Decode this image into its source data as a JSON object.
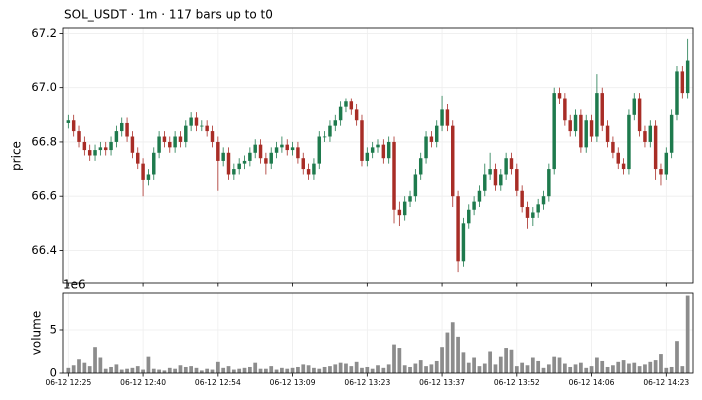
{
  "chart_data": [
    {
      "type": "candlestick",
      "title": "SOL_USDT  ·  1m  ·  117 bars up to t0",
      "ylabel": "price",
      "up_color": "#1e7a4d",
      "down_color": "#a82d26",
      "grid": true,
      "xlim": [
        -1,
        117
      ],
      "ylim": [
        66.28,
        67.22
      ],
      "yticks": [
        66.4,
        66.6,
        66.8,
        {
          "value": 67,
          "label": "67.0"
        },
        67.2
      ],
      "open": [
        66.87,
        66.88,
        66.84,
        66.8,
        66.77,
        66.75,
        66.77,
        66.78,
        66.77,
        66.8,
        66.84,
        66.87,
        66.82,
        66.76,
        66.72,
        66.66,
        66.68,
        66.76,
        66.82,
        66.8,
        66.78,
        66.82,
        66.8,
        66.86,
        66.89,
        66.86,
        66.86,
        66.84,
        66.8,
        66.73,
        66.76,
        66.68,
        66.7,
        66.72,
        66.73,
        66.76,
        66.79,
        66.74,
        66.72,
        66.76,
        66.78,
        66.79,
        66.77,
        66.78,
        66.74,
        66.7,
        66.68,
        66.72,
        66.82,
        66.82,
        66.86,
        66.88,
        66.93,
        66.95,
        66.92,
        66.88,
        66.73,
        66.76,
        66.78,
        66.79,
        66.74,
        66.8,
        66.55,
        66.53,
        66.58,
        66.6,
        66.68,
        66.74,
        66.82,
        66.8,
        66.86,
        66.92,
        66.86,
        66.6,
        66.36,
        66.5,
        66.55,
        66.58,
        66.62,
        66.68,
        66.7,
        66.64,
        66.68,
        66.74,
        66.7,
        66.62,
        66.56,
        66.52,
        66.54,
        66.57,
        66.6,
        66.7,
        66.98,
        66.96,
        66.88,
        66.84,
        66.9,
        66.78,
        66.88,
        66.82,
        66.98,
        66.86,
        66.8,
        66.76,
        66.72,
        66.7,
        66.9,
        66.96,
        66.84,
        66.8,
        66.86,
        66.7,
        66.68,
        66.76,
        66.9,
        67.06,
        66.98
      ],
      "high": [
        66.9,
        66.9,
        66.86,
        66.82,
        66.79,
        66.79,
        66.8,
        66.8,
        66.82,
        66.86,
        66.89,
        66.89,
        66.84,
        66.78,
        66.74,
        66.7,
        66.78,
        66.84,
        66.84,
        66.82,
        66.84,
        66.84,
        66.88,
        66.91,
        66.91,
        66.88,
        66.88,
        66.86,
        66.82,
        66.78,
        66.78,
        66.72,
        66.74,
        66.75,
        66.78,
        66.81,
        66.81,
        66.76,
        66.78,
        66.8,
        66.82,
        66.81,
        66.8,
        66.8,
        66.76,
        66.72,
        66.74,
        66.84,
        66.84,
        66.88,
        66.9,
        66.95,
        66.96,
        66.96,
        66.94,
        66.9,
        66.78,
        66.8,
        66.81,
        66.81,
        66.82,
        66.82,
        66.58,
        66.6,
        66.62,
        66.7,
        66.76,
        66.84,
        66.84,
        66.88,
        66.97,
        66.94,
        66.88,
        66.62,
        66.52,
        66.57,
        66.6,
        66.64,
        66.72,
        66.76,
        66.72,
        66.7,
        66.76,
        66.76,
        66.72,
        66.64,
        66.58,
        66.56,
        66.59,
        66.62,
        66.72,
        67.0,
        67.0,
        66.98,
        66.9,
        66.92,
        66.92,
        66.9,
        66.9,
        67.05,
        67.0,
        66.88,
        66.82,
        66.78,
        66.74,
        66.92,
        66.98,
        66.98,
        66.86,
        66.88,
        66.88,
        66.72,
        66.78,
        66.92,
        67.08,
        67.08,
        67.18
      ],
      "low": [
        66.85,
        66.82,
        66.78,
        66.75,
        66.73,
        66.73,
        66.75,
        66.75,
        66.75,
        66.78,
        66.82,
        66.8,
        66.74,
        66.7,
        66.6,
        66.64,
        66.66,
        66.74,
        66.78,
        66.76,
        66.76,
        66.78,
        66.78,
        66.84,
        66.84,
        66.84,
        66.82,
        66.78,
        66.62,
        66.71,
        66.66,
        66.66,
        66.68,
        66.7,
        66.71,
        66.74,
        66.72,
        66.68,
        66.7,
        66.74,
        66.76,
        66.75,
        66.75,
        66.72,
        66.68,
        66.66,
        66.66,
        66.7,
        66.8,
        66.8,
        66.84,
        66.86,
        66.91,
        66.9,
        66.86,
        66.71,
        66.71,
        66.74,
        66.76,
        66.72,
        66.72,
        66.5,
        66.49,
        66.51,
        66.56,
        66.58,
        66.66,
        66.72,
        66.78,
        66.78,
        66.84,
        66.84,
        66.56,
        66.32,
        66.34,
        66.48,
        66.53,
        66.56,
        66.6,
        66.66,
        66.62,
        66.62,
        66.66,
        66.68,
        66.6,
        66.54,
        66.48,
        66.49,
        66.52,
        66.55,
        66.58,
        66.68,
        66.94,
        66.86,
        66.82,
        66.82,
        66.76,
        66.76,
        66.8,
        66.8,
        66.84,
        66.78,
        66.74,
        66.7,
        66.68,
        66.68,
        66.88,
        66.82,
        66.78,
        66.78,
        66.66,
        66.64,
        66.66,
        66.74,
        66.88,
        66.96,
        66.96
      ],
      "close": [
        66.88,
        66.84,
        66.8,
        66.77,
        66.75,
        66.77,
        66.78,
        66.77,
        66.8,
        66.84,
        66.87,
        66.82,
        66.76,
        66.72,
        66.66,
        66.68,
        66.76,
        66.82,
        66.8,
        66.78,
        66.82,
        66.8,
        66.86,
        66.89,
        66.86,
        66.86,
        66.84,
        66.8,
        66.73,
        66.76,
        66.68,
        66.7,
        66.72,
        66.73,
        66.76,
        66.79,
        66.74,
        66.72,
        66.76,
        66.78,
        66.79,
        66.77,
        66.78,
        66.74,
        66.7,
        66.68,
        66.72,
        66.82,
        66.82,
        66.86,
        66.88,
        66.93,
        66.95,
        66.92,
        66.88,
        66.73,
        66.76,
        66.78,
        66.79,
        66.74,
        66.8,
        66.55,
        66.53,
        66.58,
        66.6,
        66.68,
        66.74,
        66.82,
        66.8,
        66.86,
        66.92,
        66.86,
        66.6,
        66.36,
        66.5,
        66.55,
        66.58,
        66.62,
        66.68,
        66.7,
        66.64,
        66.68,
        66.74,
        66.7,
        66.62,
        66.56,
        66.52,
        66.54,
        66.57,
        66.6,
        66.7,
        66.98,
        66.96,
        66.88,
        66.84,
        66.9,
        66.78,
        66.88,
        66.82,
        66.98,
        66.86,
        66.8,
        66.76,
        66.72,
        66.7,
        66.9,
        66.96,
        66.84,
        66.8,
        66.86,
        66.7,
        66.68,
        66.76,
        66.9,
        67.06,
        66.98,
        67.1
      ]
    },
    {
      "type": "bar",
      "ylabel": "volume",
      "offset_label": "1e6",
      "color": "#8c8c8c",
      "grid": true,
      "xlim": [
        -1,
        117
      ],
      "ylim": [
        0,
        9.3
      ],
      "yticks": [
        0,
        5
      ],
      "xticks": [
        {
          "value": 0,
          "label": "06-12 12:25"
        },
        {
          "value": 14,
          "label": "06-12 12:40"
        },
        {
          "value": 28,
          "label": "06-12 12:54"
        },
        {
          "value": 42,
          "label": "06-12 13:09"
        },
        {
          "value": 56,
          "label": "06-12 13:23"
        },
        {
          "value": 70,
          "label": "06-12 13:37"
        },
        {
          "value": 84,
          "label": "06-12 13:52"
        },
        {
          "value": 98,
          "label": "06-12 14:06"
        },
        {
          "value": 112,
          "label": "06-12 14:23"
        }
      ],
      "values": [
        0.6,
        0.9,
        1.6,
        1.2,
        0.8,
        3.0,
        1.8,
        0.5,
        0.7,
        1.0,
        0.4,
        0.5,
        0.6,
        0.8,
        0.4,
        1.9,
        0.5,
        0.4,
        0.3,
        0.6,
        0.5,
        0.9,
        0.7,
        0.8,
        0.6,
        0.3,
        0.5,
        0.4,
        1.3,
        0.6,
        0.8,
        0.4,
        0.5,
        0.6,
        0.7,
        1.2,
        0.5,
        0.5,
        0.8,
        0.4,
        0.6,
        0.5,
        0.6,
        0.7,
        1.0,
        0.9,
        0.6,
        0.5,
        0.7,
        0.8,
        1.0,
        1.2,
        1.1,
        0.8,
        1.3,
        0.6,
        0.7,
        0.5,
        0.9,
        0.6,
        1.0,
        3.3,
        2.9,
        0.9,
        0.7,
        1.1,
        1.5,
        0.8,
        1.0,
        1.4,
        3.0,
        4.7,
        5.9,
        4.2,
        2.4,
        1.2,
        1.8,
        0.8,
        1.1,
        2.5,
        1.0,
        1.9,
        2.9,
        2.7,
        0.8,
        1.2,
        0.9,
        1.8,
        1.4,
        0.6,
        1.0,
        1.9,
        1.8,
        1.1,
        0.7,
        1.0,
        1.2,
        0.6,
        0.8,
        1.8,
        1.4,
        0.7,
        0.9,
        1.3,
        1.5,
        1.1,
        1.2,
        0.8,
        1.0,
        1.3,
        1.5,
        2.2,
        0.6,
        0.7,
        3.7,
        0.8,
        9.0
      ]
    }
  ]
}
